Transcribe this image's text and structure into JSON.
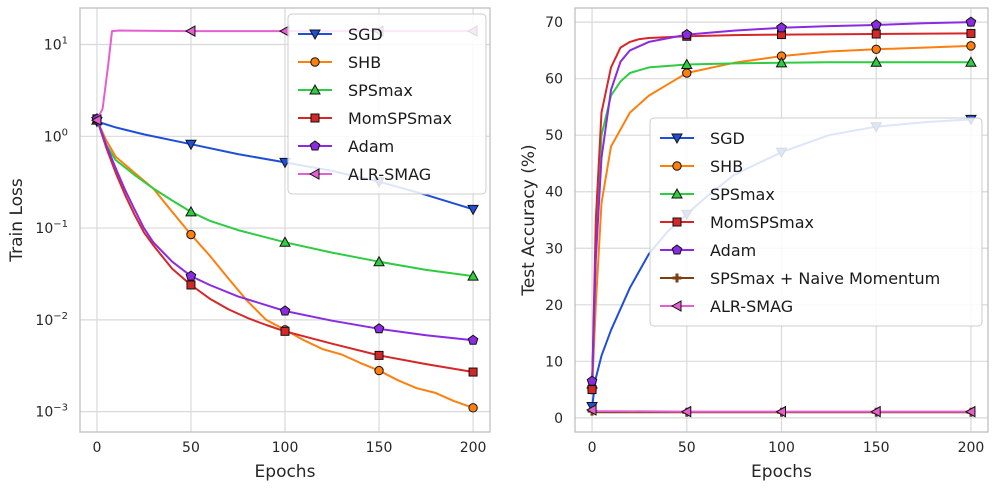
{
  "chart_data": [
    {
      "type": "line",
      "xlabel": "Epochs",
      "ylabel": "Train Loss",
      "yscale": "log",
      "xlim": [
        -9,
        209
      ],
      "ylim": [
        0.0006,
        25
      ],
      "xticks": [
        0,
        50,
        100,
        150,
        200
      ],
      "yticks": [
        {
          "value": 0.001,
          "base": "10",
          "exp": "−3"
        },
        {
          "value": 0.01,
          "base": "10",
          "exp": "−2"
        },
        {
          "value": 0.1,
          "base": "10",
          "exp": "−1"
        },
        {
          "value": 1,
          "base": "10",
          "exp": "0"
        },
        {
          "value": 10,
          "base": "10",
          "exp": "1"
        }
      ],
      "grid": true,
      "legend_position": "top-right",
      "series": [
        {
          "name": "SGD",
          "color": "#1f4fd8",
          "marker": "triangle-down",
          "x": [
            0,
            10,
            25,
            50,
            75,
            100,
            125,
            150,
            175,
            200
          ],
          "y": [
            1.45,
            1.25,
            1.05,
            0.82,
            0.64,
            0.52,
            0.42,
            0.32,
            0.23,
            0.16
          ]
        },
        {
          "name": "SHB",
          "color": "#ff7f0e",
          "marker": "circle",
          "x": [
            0,
            5,
            10,
            20,
            30,
            40,
            50,
            60,
            70,
            80,
            90,
            100,
            110,
            120,
            130,
            140,
            150,
            160,
            170,
            180,
            190,
            200
          ],
          "y": [
            1.5,
            0.9,
            0.6,
            0.4,
            0.27,
            0.15,
            0.085,
            0.05,
            0.028,
            0.016,
            0.01,
            0.0078,
            0.006,
            0.0048,
            0.0042,
            0.0034,
            0.0028,
            0.0022,
            0.0018,
            0.0016,
            0.0013,
            0.0011
          ]
        },
        {
          "name": "SPSmax",
          "color": "#2ecc40",
          "marker": "triangle-up",
          "x": [
            0,
            5,
            10,
            20,
            30,
            40,
            50,
            60,
            75,
            100,
            125,
            150,
            175,
            200
          ],
          "y": [
            1.5,
            0.8,
            0.55,
            0.38,
            0.27,
            0.2,
            0.15,
            0.12,
            0.095,
            0.07,
            0.054,
            0.043,
            0.035,
            0.03
          ]
        },
        {
          "name": "MomSPSmax",
          "color": "#d62728",
          "marker": "square",
          "x": [
            0,
            5,
            10,
            15,
            20,
            25,
            30,
            40,
            50,
            60,
            70,
            80,
            90,
            100,
            125,
            150,
            175,
            200
          ],
          "y": [
            1.55,
            0.75,
            0.4,
            0.23,
            0.14,
            0.09,
            0.065,
            0.036,
            0.024,
            0.017,
            0.013,
            0.0105,
            0.0088,
            0.0075,
            0.0055,
            0.0041,
            0.0033,
            0.0027
          ]
        },
        {
          "name": "Adam",
          "color": "#8a2be2",
          "marker": "pentagon",
          "x": [
            0,
            5,
            10,
            15,
            20,
            25,
            30,
            40,
            50,
            60,
            75,
            100,
            125,
            150,
            175,
            200
          ],
          "y": [
            1.55,
            0.8,
            0.45,
            0.26,
            0.16,
            0.1,
            0.07,
            0.043,
            0.03,
            0.024,
            0.018,
            0.0125,
            0.0098,
            0.008,
            0.0068,
            0.006
          ]
        },
        {
          "name": "ALR-SMAG",
          "color": "#e55fd0",
          "marker": "triangle-left",
          "x": [
            0,
            3,
            6,
            8,
            12,
            50,
            100,
            150,
            200
          ],
          "y": [
            1.5,
            2.0,
            6.0,
            14.0,
            14.2,
            14.0,
            14.0,
            14.0,
            14.0
          ]
        }
      ]
    },
    {
      "type": "line",
      "xlabel": "Epochs",
      "ylabel": "Test Accuracy  (%)",
      "xlim": [
        -9,
        209
      ],
      "ylim": [
        -2.5,
        72.5
      ],
      "xticks": [
        0,
        50,
        100,
        150,
        200
      ],
      "yticks": [
        0,
        10,
        20,
        30,
        40,
        50,
        60,
        70
      ],
      "grid": true,
      "legend_position": "center-right",
      "series": [
        {
          "name": "SGD",
          "color": "#1f4fd8",
          "marker": "triangle-down",
          "x": [
            0,
            2,
            5,
            10,
            20,
            30,
            40,
            50,
            60,
            75,
            100,
            125,
            150,
            175,
            200
          ],
          "y": [
            2,
            7,
            11,
            15.5,
            23,
            29,
            33,
            36,
            39,
            43,
            47,
            50,
            51.5,
            52.3,
            52.8
          ]
        },
        {
          "name": "SHB",
          "color": "#ff7f0e",
          "marker": "circle",
          "x": [
            0,
            2,
            5,
            10,
            20,
            30,
            40,
            50,
            75,
            100,
            125,
            150,
            175,
            200
          ],
          "y": [
            5,
            20,
            38,
            48,
            54,
            57,
            59,
            61,
            62.8,
            64,
            64.8,
            65.2,
            65.5,
            65.8
          ]
        },
        {
          "name": "SPSmax",
          "color": "#2ecc40",
          "marker": "triangle-up",
          "x": [
            0,
            2,
            5,
            10,
            15,
            20,
            30,
            50,
            75,
            100,
            125,
            150,
            175,
            200
          ],
          "y": [
            6,
            30,
            50,
            57,
            59.5,
            61,
            62,
            62.5,
            62.7,
            62.8,
            62.9,
            62.9,
            62.9,
            62.9
          ]
        },
        {
          "name": "MomSPSmax",
          "color": "#d62728",
          "marker": "square",
          "x": [
            0,
            2,
            5,
            10,
            15,
            20,
            25,
            30,
            50,
            75,
            100,
            150,
            200
          ],
          "y": [
            5,
            35,
            54,
            62,
            65.5,
            66.5,
            67,
            67.2,
            67.5,
            67.7,
            67.8,
            67.9,
            68
          ]
        },
        {
          "name": "Adam",
          "color": "#8a2be2",
          "marker": "pentagon",
          "x": [
            0,
            2,
            5,
            10,
            15,
            20,
            30,
            50,
            75,
            100,
            125,
            150,
            175,
            200
          ],
          "y": [
            6.5,
            28,
            46,
            58,
            63,
            65,
            66.5,
            67.8,
            68.5,
            69,
            69.3,
            69.5,
            69.8,
            70
          ]
        },
        {
          "name": "SPSmax + Naive Momentum",
          "color": "#7b3f10",
          "marker": "plus",
          "x": [
            0,
            3,
            50,
            100,
            150,
            200
          ],
          "y": [
            1.2,
            1.0,
            1.0,
            1.0,
            1.0,
            1.0
          ]
        },
        {
          "name": "ALR-SMAG",
          "color": "#e55fd0",
          "marker": "triangle-left",
          "x": [
            0,
            3,
            50,
            100,
            150,
            200
          ],
          "y": [
            1.4,
            1.2,
            1.1,
            1.1,
            1.1,
            1.1
          ]
        }
      ]
    }
  ]
}
